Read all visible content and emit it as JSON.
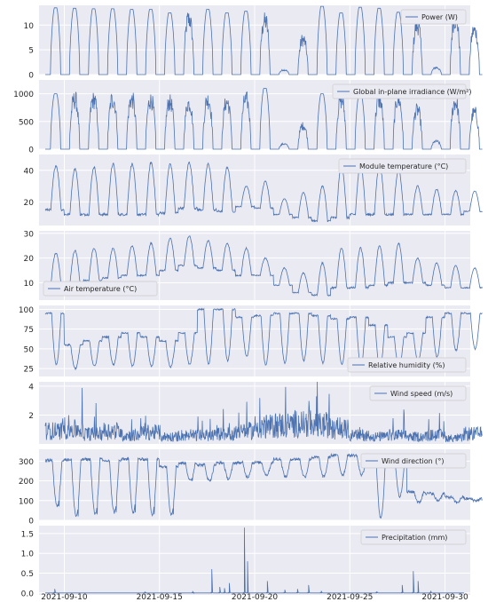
{
  "colors": {
    "panel_bg": "#eaeaf2",
    "grid": "#ffffff",
    "line": "#4c72b0",
    "text": "#262626",
    "legend_border": "#cccccc"
  },
  "x_ticks": [
    "2021-09-10",
    "2021-09-15",
    "2021-09-20",
    "2021-09-25",
    "2021-09-30"
  ],
  "chart_data": [
    {
      "type": "line",
      "key": "power",
      "legend": "Power (W)",
      "legend_position": "top-right",
      "ylim": [
        0,
        14
      ],
      "yticks": [
        0,
        5,
        10
      ],
      "x_range": [
        "2021-09-09",
        "2021-10-01"
      ],
      "grid": true,
      "profile": "solar",
      "daily_peaks": [
        13.5,
        13.4,
        13.3,
        13.3,
        13.2,
        13.2,
        12.5,
        12.0,
        13.2,
        12.5,
        12.8,
        11.5,
        1.0,
        7.5,
        13.8,
        12.5,
        13.6,
        13.4,
        12.6,
        10.5,
        1.5,
        12.0,
        9.5
      ]
    },
    {
      "type": "line",
      "key": "irradiance",
      "legend": "Global in-plane irradiance (W/m²)",
      "legend_position": "top-right",
      "ylim": [
        0,
        1250
      ],
      "yticks": [
        0,
        500,
        1000
      ],
      "x_range": [
        "2021-09-09",
        "2021-10-01"
      ],
      "grid": true,
      "profile": "solar",
      "daily_peaks": [
        1000,
        950,
        950,
        950,
        950,
        940,
        900,
        880,
        950,
        900,
        950,
        1100,
        100,
        450,
        1000,
        950,
        1000,
        950,
        950,
        750,
        150,
        900,
        700
      ]
    },
    {
      "type": "line",
      "key": "module_temp",
      "legend": "Module temperature (°C)",
      "legend_position": "top-right",
      "ylim": [
        5,
        50
      ],
      "yticks": [
        20,
        40
      ],
      "x_range": [
        "2021-09-09",
        "2021-10-01"
      ],
      "grid": true,
      "profile": "daily",
      "daily_min": [
        15,
        12,
        12,
        12,
        12,
        12,
        13,
        16,
        15,
        14,
        17,
        16,
        12,
        10,
        8,
        10,
        12,
        12,
        12,
        12,
        12,
        12,
        14
      ],
      "daily_max": [
        43,
        41,
        42,
        44,
        44,
        45,
        44,
        45,
        44,
        42,
        30,
        33,
        22,
        26,
        30,
        43,
        43,
        44,
        40,
        30,
        28,
        27,
        27
      ]
    },
    {
      "type": "line",
      "key": "air_temp",
      "legend": "Air temperature (°C)",
      "legend_position": "bottom-left",
      "ylim": [
        3,
        31
      ],
      "yticks": [
        10,
        20,
        30
      ],
      "x_range": [
        "2021-09-09",
        "2021-10-01"
      ],
      "grid": true,
      "profile": "daily",
      "daily_min": [
        9,
        9,
        11,
        12,
        13,
        13,
        15,
        17,
        16,
        15,
        13,
        13,
        9,
        6,
        5,
        8,
        8,
        9,
        10,
        10,
        9,
        8,
        8
      ],
      "daily_max": [
        22,
        23,
        24,
        24,
        25,
        26,
        28,
        29,
        27,
        26,
        24,
        20,
        16,
        14,
        18,
        24,
        24,
        25,
        26,
        20,
        18,
        17,
        16
      ]
    },
    {
      "type": "line",
      "key": "humidity",
      "legend": "Relative humidity (%)",
      "legend_position": "bottom-right",
      "ylim": [
        15,
        105
      ],
      "yticks": [
        25,
        50,
        75,
        100
      ],
      "x_range": [
        "2021-09-09",
        "2021-10-01"
      ],
      "grid": true,
      "profile": "humidity",
      "daily_max": [
        95,
        55,
        60,
        65,
        70,
        65,
        60,
        70,
        100,
        100,
        90,
        92,
        95,
        95,
        92,
        88,
        90,
        80,
        65,
        70,
        90,
        95,
        95
      ],
      "daily_min": [
        30,
        25,
        28,
        30,
        28,
        28,
        27,
        30,
        30,
        35,
        40,
        30,
        32,
        35,
        32,
        30,
        28,
        25,
        28,
        35,
        40,
        48,
        50
      ]
    },
    {
      "type": "line",
      "key": "wind_speed",
      "legend": "Wind speed (m/s)",
      "legend_position": "top-right",
      "ylim": [
        0,
        4.3
      ],
      "yticks": [
        2,
        4
      ],
      "x_range": [
        "2021-09-09",
        "2021-10-01"
      ],
      "grid": true,
      "profile": "noise",
      "daily_level": [
        0.9,
        1.0,
        0.7,
        0.9,
        0.6,
        0.8,
        0.5,
        0.6,
        0.6,
        0.7,
        0.9,
        1.2,
        1.3,
        1.4,
        1.3,
        1.0,
        0.6,
        0.5,
        0.6,
        0.5,
        0.6,
        0.4,
        0.7
      ]
    },
    {
      "type": "line",
      "key": "wind_dir",
      "legend": "Wind direction (°)",
      "legend_position": "top-right",
      "ylim": [
        0,
        360
      ],
      "yticks": [
        0,
        100,
        200,
        300
      ],
      "x_range": [
        "2021-09-09",
        "2021-10-01"
      ],
      "grid": true,
      "profile": "direction",
      "daily_hi": [
        330,
        340,
        340,
        330,
        340,
        340,
        300,
        300,
        290,
        300,
        300,
        300,
        320,
        320,
        330,
        340,
        340,
        350,
        330,
        150,
        140,
        120,
        110
      ],
      "daily_lo": [
        70,
        20,
        30,
        40,
        40,
        30,
        30,
        200,
        200,
        210,
        220,
        230,
        220,
        220,
        220,
        230,
        230,
        10,
        120,
        90,
        100,
        90,
        100
      ]
    },
    {
      "type": "line",
      "key": "precip",
      "legend": "Precipitation (mm)",
      "legend_position": "top-right",
      "ylim": [
        -0.05,
        1.7
      ],
      "yticks": [
        0.0,
        0.5,
        1.0,
        1.5
      ],
      "x_range": [
        "2021-09-09",
        "2021-10-01"
      ],
      "grid": true,
      "profile": "events",
      "events": [
        {
          "x": "2021-09-09 12:00",
          "y": 0.1
        },
        {
          "x": "2021-09-14 06:00",
          "y": 0.02
        },
        {
          "x": "2021-09-16 18:00",
          "y": 0.03
        },
        {
          "x": "2021-09-17 18:00",
          "y": 0.6
        },
        {
          "x": "2021-09-18 04:00",
          "y": 0.15
        },
        {
          "x": "2021-09-18 10:00",
          "y": 0.12
        },
        {
          "x": "2021-09-18 16:00",
          "y": 0.25
        },
        {
          "x": "2021-09-19 11:00",
          "y": 1.65
        },
        {
          "x": "2021-09-19 15:00",
          "y": 0.8
        },
        {
          "x": "2021-09-20 16:00",
          "y": 0.3
        },
        {
          "x": "2021-09-21 14:00",
          "y": 0.08
        },
        {
          "x": "2021-09-22 06:00",
          "y": 0.1
        },
        {
          "x": "2021-09-22 20:00",
          "y": 0.2
        },
        {
          "x": "2021-09-23 12:00",
          "y": 0.05
        },
        {
          "x": "2021-09-26 10:00",
          "y": 0.04
        },
        {
          "x": "2021-09-27 18:00",
          "y": 0.2
        },
        {
          "x": "2021-09-28 08:00",
          "y": 0.55
        },
        {
          "x": "2021-09-28 14:00",
          "y": 0.3
        },
        {
          "x": "2021-09-29 06:00",
          "y": 0.05
        }
      ]
    }
  ]
}
